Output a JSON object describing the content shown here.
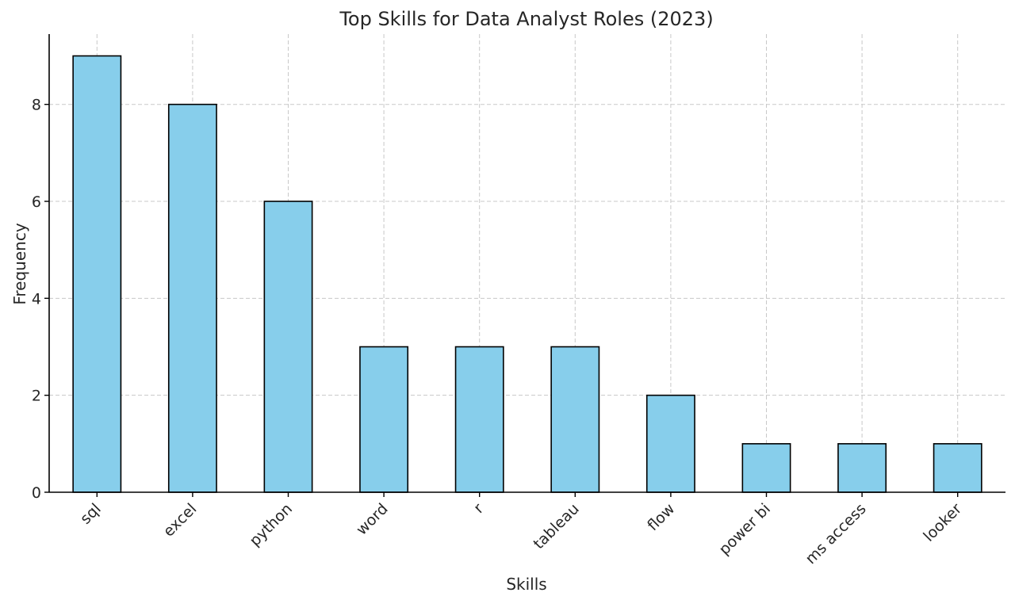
{
  "chart_data": {
    "type": "bar",
    "title": "Top Skills for Data Analyst Roles (2023)",
    "xlabel": "Skills",
    "ylabel": "Frequency",
    "categories": [
      "sql",
      "excel",
      "python",
      "word",
      "r",
      "tableau",
      "flow",
      "power bi",
      "ms access",
      "looker"
    ],
    "values": [
      9,
      8,
      6,
      3,
      3,
      3,
      2,
      1,
      1,
      1
    ],
    "ylim": [
      0,
      9.45
    ],
    "yticks": [
      0,
      2,
      4,
      6,
      8
    ],
    "grid": true,
    "bar_color": "#87CEEB",
    "edge_color": "#000000",
    "grid_color": "#c8c8c8"
  }
}
